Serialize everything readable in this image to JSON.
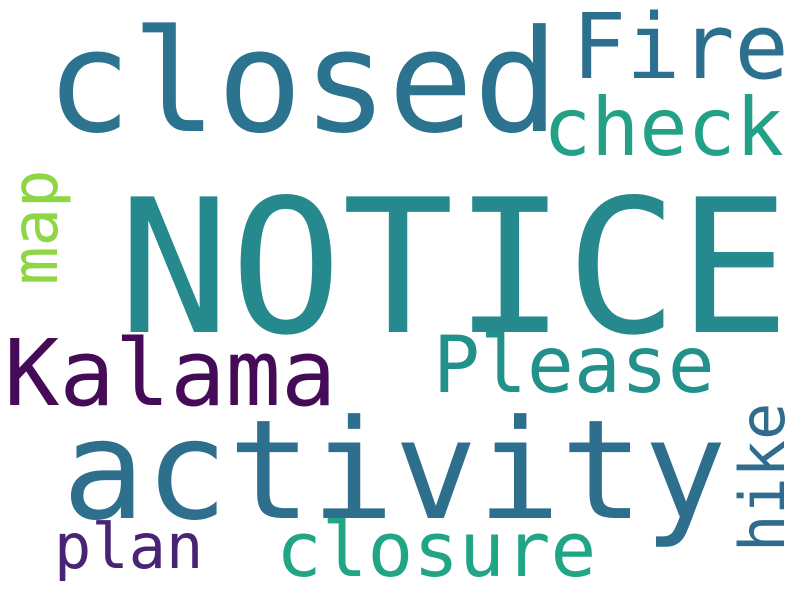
{
  "words": {
    "notice": {
      "text": "NOTICE",
      "color": "#26898d"
    },
    "closed": {
      "text": "closed",
      "color": "#2b738e"
    },
    "activity": {
      "text": "activity",
      "color": "#2e6f8e"
    },
    "kalama": {
      "text": "Kalama",
      "color": "#450b57"
    },
    "fire": {
      "text": "Fire",
      "color": "#2d6f8e"
    },
    "please": {
      "text": "Please",
      "color": "#23918b"
    },
    "closure": {
      "text": "closure",
      "color": "#21a585"
    },
    "check": {
      "text": "check",
      "color": "#22a187"
    },
    "plan": {
      "text": "plan",
      "color": "#482475"
    },
    "map": {
      "text": "map",
      "color": "#8ed645"
    },
    "hike": {
      "text": "hike",
      "color": "#2f6c8e"
    }
  }
}
